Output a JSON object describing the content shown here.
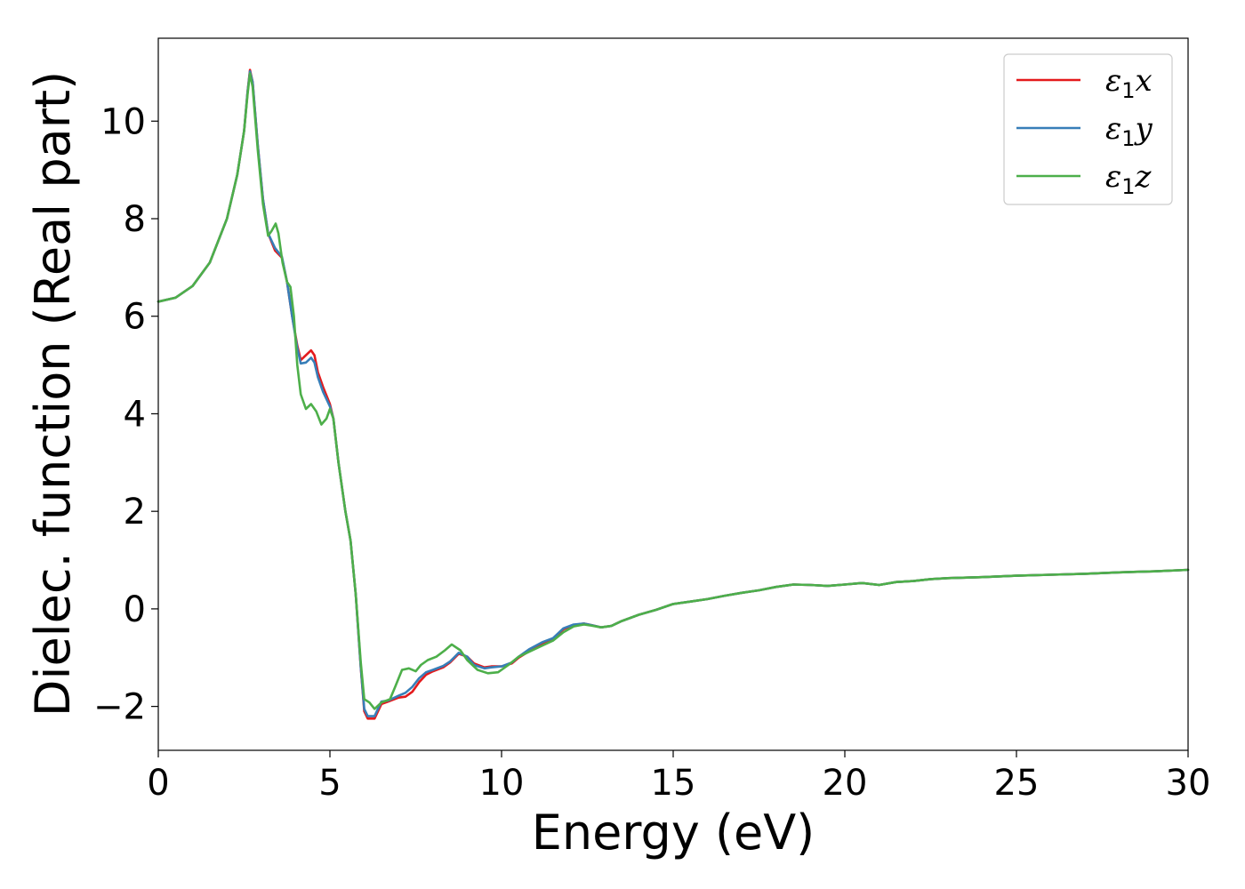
{
  "chart_data": {
    "type": "line",
    "title": "",
    "xlabel": "Energy (eV)",
    "ylabel": "Dielec. function (Real part)",
    "xlim": [
      0,
      30
    ],
    "ylim": [
      -2.9,
      11.7
    ],
    "xticks": [
      0,
      5,
      10,
      15,
      20,
      25,
      30
    ],
    "xtick_labels": [
      "0",
      "5",
      "10",
      "15",
      "20",
      "25",
      "30"
    ],
    "yticks": [
      -2,
      0,
      2,
      4,
      6,
      8,
      10
    ],
    "ytick_labels": [
      "−2",
      "0",
      "2",
      "4",
      "6",
      "8",
      "10"
    ],
    "grid": false,
    "legend_position": "top-right",
    "series": [
      {
        "name": "ε₁x",
        "name_parts": {
          "symbol": "ε",
          "sub": "1",
          "axis": "x"
        },
        "color": "#e41a1c",
        "points": [
          [
            0,
            6.3
          ],
          [
            0.5,
            6.38
          ],
          [
            1.0,
            6.62
          ],
          [
            1.5,
            7.1
          ],
          [
            2.0,
            8.0
          ],
          [
            2.3,
            8.9
          ],
          [
            2.5,
            9.8
          ],
          [
            2.6,
            10.6
          ],
          [
            2.67,
            11.05
          ],
          [
            2.75,
            10.8
          ],
          [
            2.9,
            9.5
          ],
          [
            3.05,
            8.4
          ],
          [
            3.2,
            7.7
          ],
          [
            3.4,
            7.35
          ],
          [
            3.6,
            7.2
          ],
          [
            3.75,
            6.7
          ],
          [
            3.9,
            6.0
          ],
          [
            4.05,
            5.4
          ],
          [
            4.15,
            5.1
          ],
          [
            4.3,
            5.2
          ],
          [
            4.45,
            5.3
          ],
          [
            4.55,
            5.2
          ],
          [
            4.65,
            4.85
          ],
          [
            4.8,
            4.55
          ],
          [
            5.0,
            4.2
          ],
          [
            5.1,
            3.9
          ],
          [
            5.25,
            3.0
          ],
          [
            5.45,
            2.0
          ],
          [
            5.6,
            1.4
          ],
          [
            5.75,
            0.3
          ],
          [
            5.9,
            -1.2
          ],
          [
            6.0,
            -2.1
          ],
          [
            6.1,
            -2.25
          ],
          [
            6.3,
            -2.25
          ],
          [
            6.5,
            -1.95
          ],
          [
            6.7,
            -1.9
          ],
          [
            7.0,
            -1.82
          ],
          [
            7.2,
            -1.8
          ],
          [
            7.4,
            -1.7
          ],
          [
            7.6,
            -1.5
          ],
          [
            7.8,
            -1.35
          ],
          [
            8.0,
            -1.28
          ],
          [
            8.3,
            -1.2
          ],
          [
            8.5,
            -1.1
          ],
          [
            8.75,
            -0.92
          ],
          [
            9.0,
            -0.98
          ],
          [
            9.2,
            -1.12
          ],
          [
            9.5,
            -1.2
          ],
          [
            9.7,
            -1.18
          ],
          [
            10.0,
            -1.18
          ],
          [
            10.3,
            -1.12
          ],
          [
            10.5,
            -1.0
          ],
          [
            10.8,
            -0.87
          ],
          [
            11.2,
            -0.72
          ],
          [
            11.5,
            -0.62
          ],
          [
            11.8,
            -0.42
          ],
          [
            12.1,
            -0.33
          ],
          [
            12.4,
            -0.3
          ],
          [
            12.6,
            -0.33
          ],
          [
            12.9,
            -0.38
          ],
          [
            13.2,
            -0.35
          ],
          [
            13.5,
            -0.25
          ],
          [
            14.0,
            -0.12
          ],
          [
            14.5,
            -0.02
          ],
          [
            15.0,
            0.1
          ],
          [
            15.5,
            0.15
          ],
          [
            16.0,
            0.2
          ],
          [
            16.5,
            0.27
          ],
          [
            17.0,
            0.33
          ],
          [
            17.5,
            0.38
          ],
          [
            18.0,
            0.45
          ],
          [
            18.5,
            0.5
          ],
          [
            19.0,
            0.49
          ],
          [
            19.5,
            0.47
          ],
          [
            20.0,
            0.5
          ],
          [
            20.5,
            0.53
          ],
          [
            21.0,
            0.49
          ],
          [
            21.5,
            0.55
          ],
          [
            22.0,
            0.57
          ],
          [
            22.5,
            0.61
          ],
          [
            23.0,
            0.63
          ],
          [
            24.0,
            0.65
          ],
          [
            25.0,
            0.68
          ],
          [
            26.0,
            0.7
          ],
          [
            27.0,
            0.72
          ],
          [
            28.0,
            0.75
          ],
          [
            29.0,
            0.77
          ],
          [
            30.0,
            0.8
          ]
        ]
      },
      {
        "name": "ε₁y",
        "name_parts": {
          "symbol": "ε",
          "sub": "1",
          "axis": "y"
        },
        "color": "#377eb8",
        "points": [
          [
            0,
            6.3
          ],
          [
            0.5,
            6.38
          ],
          [
            1.0,
            6.62
          ],
          [
            1.5,
            7.1
          ],
          [
            2.0,
            8.0
          ],
          [
            2.3,
            8.9
          ],
          [
            2.5,
            9.8
          ],
          [
            2.6,
            10.6
          ],
          [
            2.67,
            11.02
          ],
          [
            2.75,
            10.8
          ],
          [
            2.9,
            9.5
          ],
          [
            3.05,
            8.4
          ],
          [
            3.2,
            7.7
          ],
          [
            3.4,
            7.4
          ],
          [
            3.6,
            7.22
          ],
          [
            3.75,
            6.7
          ],
          [
            3.9,
            6.0
          ],
          [
            4.05,
            5.35
          ],
          [
            4.15,
            5.03
          ],
          [
            4.3,
            5.05
          ],
          [
            4.45,
            5.15
          ],
          [
            4.55,
            5.05
          ],
          [
            4.65,
            4.75
          ],
          [
            4.8,
            4.45
          ],
          [
            5.0,
            4.15
          ],
          [
            5.1,
            3.9
          ],
          [
            5.25,
            3.0
          ],
          [
            5.45,
            2.0
          ],
          [
            5.6,
            1.4
          ],
          [
            5.75,
            0.3
          ],
          [
            5.9,
            -1.2
          ],
          [
            6.0,
            -2.05
          ],
          [
            6.1,
            -2.2
          ],
          [
            6.3,
            -2.2
          ],
          [
            6.5,
            -1.9
          ],
          [
            6.7,
            -1.88
          ],
          [
            7.0,
            -1.78
          ],
          [
            7.2,
            -1.72
          ],
          [
            7.4,
            -1.6
          ],
          [
            7.6,
            -1.42
          ],
          [
            7.8,
            -1.3
          ],
          [
            8.0,
            -1.25
          ],
          [
            8.3,
            -1.17
          ],
          [
            8.5,
            -1.08
          ],
          [
            8.75,
            -0.9
          ],
          [
            9.0,
            -0.98
          ],
          [
            9.2,
            -1.15
          ],
          [
            9.5,
            -1.22
          ],
          [
            9.7,
            -1.2
          ],
          [
            10.0,
            -1.18
          ],
          [
            10.3,
            -1.1
          ],
          [
            10.5,
            -0.98
          ],
          [
            10.8,
            -0.83
          ],
          [
            11.2,
            -0.68
          ],
          [
            11.5,
            -0.6
          ],
          [
            11.8,
            -0.4
          ],
          [
            12.1,
            -0.32
          ],
          [
            12.4,
            -0.3
          ],
          [
            12.6,
            -0.33
          ],
          [
            12.9,
            -0.38
          ],
          [
            13.2,
            -0.35
          ],
          [
            13.5,
            -0.25
          ],
          [
            14.0,
            -0.12
          ],
          [
            14.5,
            -0.02
          ],
          [
            15.0,
            0.1
          ],
          [
            15.5,
            0.15
          ],
          [
            16.0,
            0.2
          ],
          [
            16.5,
            0.27
          ],
          [
            17.0,
            0.33
          ],
          [
            17.5,
            0.38
          ],
          [
            18.0,
            0.45
          ],
          [
            18.5,
            0.5
          ],
          [
            19.0,
            0.49
          ],
          [
            19.5,
            0.47
          ],
          [
            20.0,
            0.5
          ],
          [
            20.5,
            0.53
          ],
          [
            21.0,
            0.49
          ],
          [
            21.5,
            0.55
          ],
          [
            22.0,
            0.57
          ],
          [
            22.5,
            0.61
          ],
          [
            23.0,
            0.63
          ],
          [
            24.0,
            0.65
          ],
          [
            25.0,
            0.68
          ],
          [
            26.0,
            0.7
          ],
          [
            27.0,
            0.72
          ],
          [
            28.0,
            0.75
          ],
          [
            29.0,
            0.77
          ],
          [
            30.0,
            0.8
          ]
        ]
      },
      {
        "name": "ε₁z",
        "name_parts": {
          "symbol": "ε",
          "sub": "1",
          "axis": "z"
        },
        "color": "#4daf4a",
        "points": [
          [
            0,
            6.3
          ],
          [
            0.5,
            6.38
          ],
          [
            1.0,
            6.62
          ],
          [
            1.5,
            7.1
          ],
          [
            2.0,
            8.0
          ],
          [
            2.3,
            8.9
          ],
          [
            2.5,
            9.8
          ],
          [
            2.6,
            10.55
          ],
          [
            2.67,
            10.98
          ],
          [
            2.75,
            10.7
          ],
          [
            2.9,
            9.4
          ],
          [
            3.05,
            8.3
          ],
          [
            3.2,
            7.65
          ],
          [
            3.3,
            7.75
          ],
          [
            3.42,
            7.9
          ],
          [
            3.5,
            7.7
          ],
          [
            3.62,
            7.1
          ],
          [
            3.75,
            6.7
          ],
          [
            3.85,
            6.6
          ],
          [
            3.95,
            6.0
          ],
          [
            4.05,
            5.0
          ],
          [
            4.15,
            4.4
          ],
          [
            4.3,
            4.1
          ],
          [
            4.45,
            4.2
          ],
          [
            4.6,
            4.05
          ],
          [
            4.75,
            3.78
          ],
          [
            4.9,
            3.9
          ],
          [
            5.0,
            4.1
          ],
          [
            5.1,
            3.9
          ],
          [
            5.25,
            3.0
          ],
          [
            5.45,
            2.0
          ],
          [
            5.6,
            1.4
          ],
          [
            5.75,
            0.3
          ],
          [
            5.9,
            -1.1
          ],
          [
            6.0,
            -1.85
          ],
          [
            6.15,
            -1.92
          ],
          [
            6.3,
            -2.05
          ],
          [
            6.5,
            -1.92
          ],
          [
            6.75,
            -1.85
          ],
          [
            6.9,
            -1.6
          ],
          [
            7.1,
            -1.25
          ],
          [
            7.3,
            -1.22
          ],
          [
            7.5,
            -1.28
          ],
          [
            7.65,
            -1.15
          ],
          [
            7.85,
            -1.05
          ],
          [
            8.1,
            -0.98
          ],
          [
            8.35,
            -0.85
          ],
          [
            8.55,
            -0.73
          ],
          [
            8.8,
            -0.85
          ],
          [
            9.0,
            -1.05
          ],
          [
            9.3,
            -1.25
          ],
          [
            9.6,
            -1.32
          ],
          [
            9.9,
            -1.3
          ],
          [
            10.2,
            -1.15
          ],
          [
            10.5,
            -0.98
          ],
          [
            10.8,
            -0.88
          ],
          [
            11.2,
            -0.75
          ],
          [
            11.5,
            -0.65
          ],
          [
            11.8,
            -0.48
          ],
          [
            12.1,
            -0.36
          ],
          [
            12.4,
            -0.32
          ],
          [
            12.6,
            -0.34
          ],
          [
            12.9,
            -0.38
          ],
          [
            13.2,
            -0.35
          ],
          [
            13.5,
            -0.25
          ],
          [
            14.0,
            -0.12
          ],
          [
            14.5,
            -0.02
          ],
          [
            15.0,
            0.1
          ],
          [
            15.5,
            0.15
          ],
          [
            16.0,
            0.2
          ],
          [
            16.5,
            0.27
          ],
          [
            17.0,
            0.33
          ],
          [
            17.5,
            0.38
          ],
          [
            18.0,
            0.45
          ],
          [
            18.5,
            0.5
          ],
          [
            19.0,
            0.49
          ],
          [
            19.5,
            0.47
          ],
          [
            20.0,
            0.5
          ],
          [
            20.5,
            0.53
          ],
          [
            21.0,
            0.49
          ],
          [
            21.5,
            0.55
          ],
          [
            22.0,
            0.57
          ],
          [
            22.5,
            0.61
          ],
          [
            23.0,
            0.63
          ],
          [
            24.0,
            0.65
          ],
          [
            25.0,
            0.68
          ],
          [
            26.0,
            0.7
          ],
          [
            27.0,
            0.72
          ],
          [
            28.0,
            0.75
          ],
          [
            29.0,
            0.77
          ],
          [
            30.0,
            0.8
          ]
        ]
      }
    ]
  }
}
